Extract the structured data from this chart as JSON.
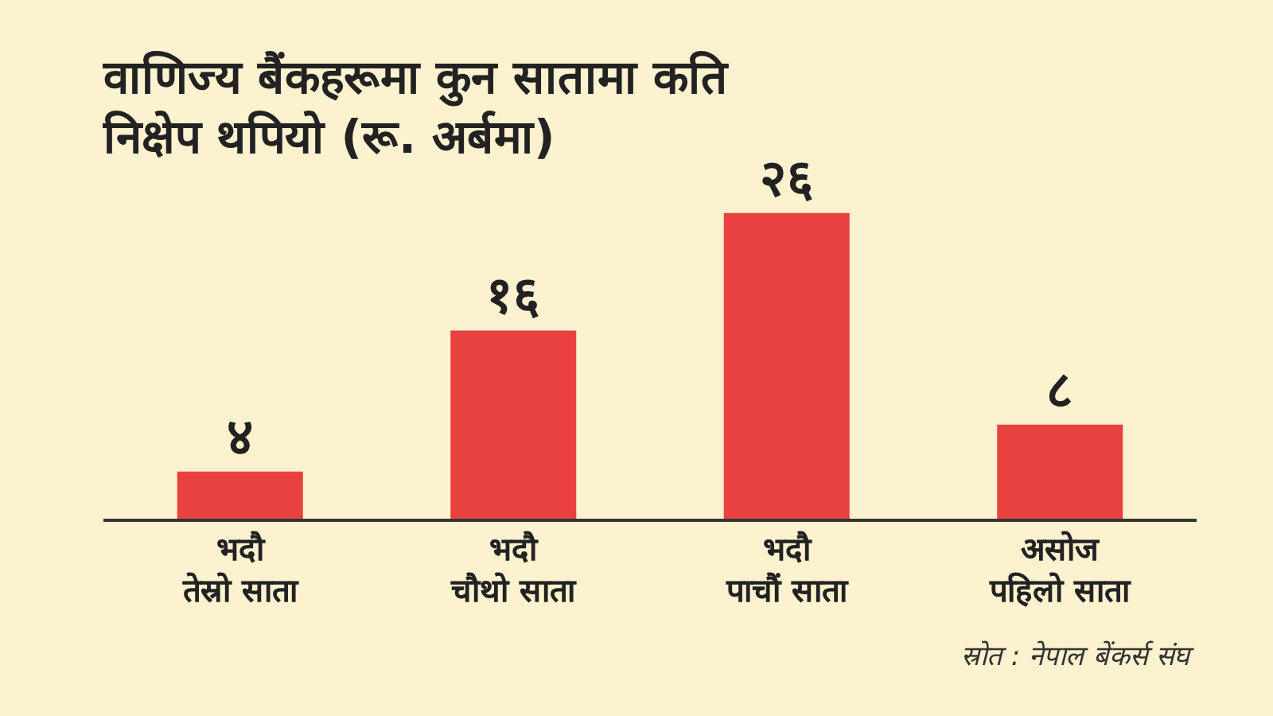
{
  "chart_data": {
    "type": "bar",
    "title": "वाणिज्य बैंकहरूमा कुन सातामा कति\nनिक्षेप थपियो (रू. अर्बमा)",
    "categories": [
      "भदौ\nतेस्रो साता",
      "भदौ\nचौथो साता",
      "भदौ\nपाचौं साता",
      "असोज\nपहिलो साता"
    ],
    "values": [
      4,
      16,
      26,
      8
    ],
    "value_labels": [
      "४",
      "१६",
      "२६",
      "८"
    ],
    "color": "#e8413f",
    "annotations": [
      "स्रोत : नेपाल बेंकर्स संघ"
    ]
  }
}
